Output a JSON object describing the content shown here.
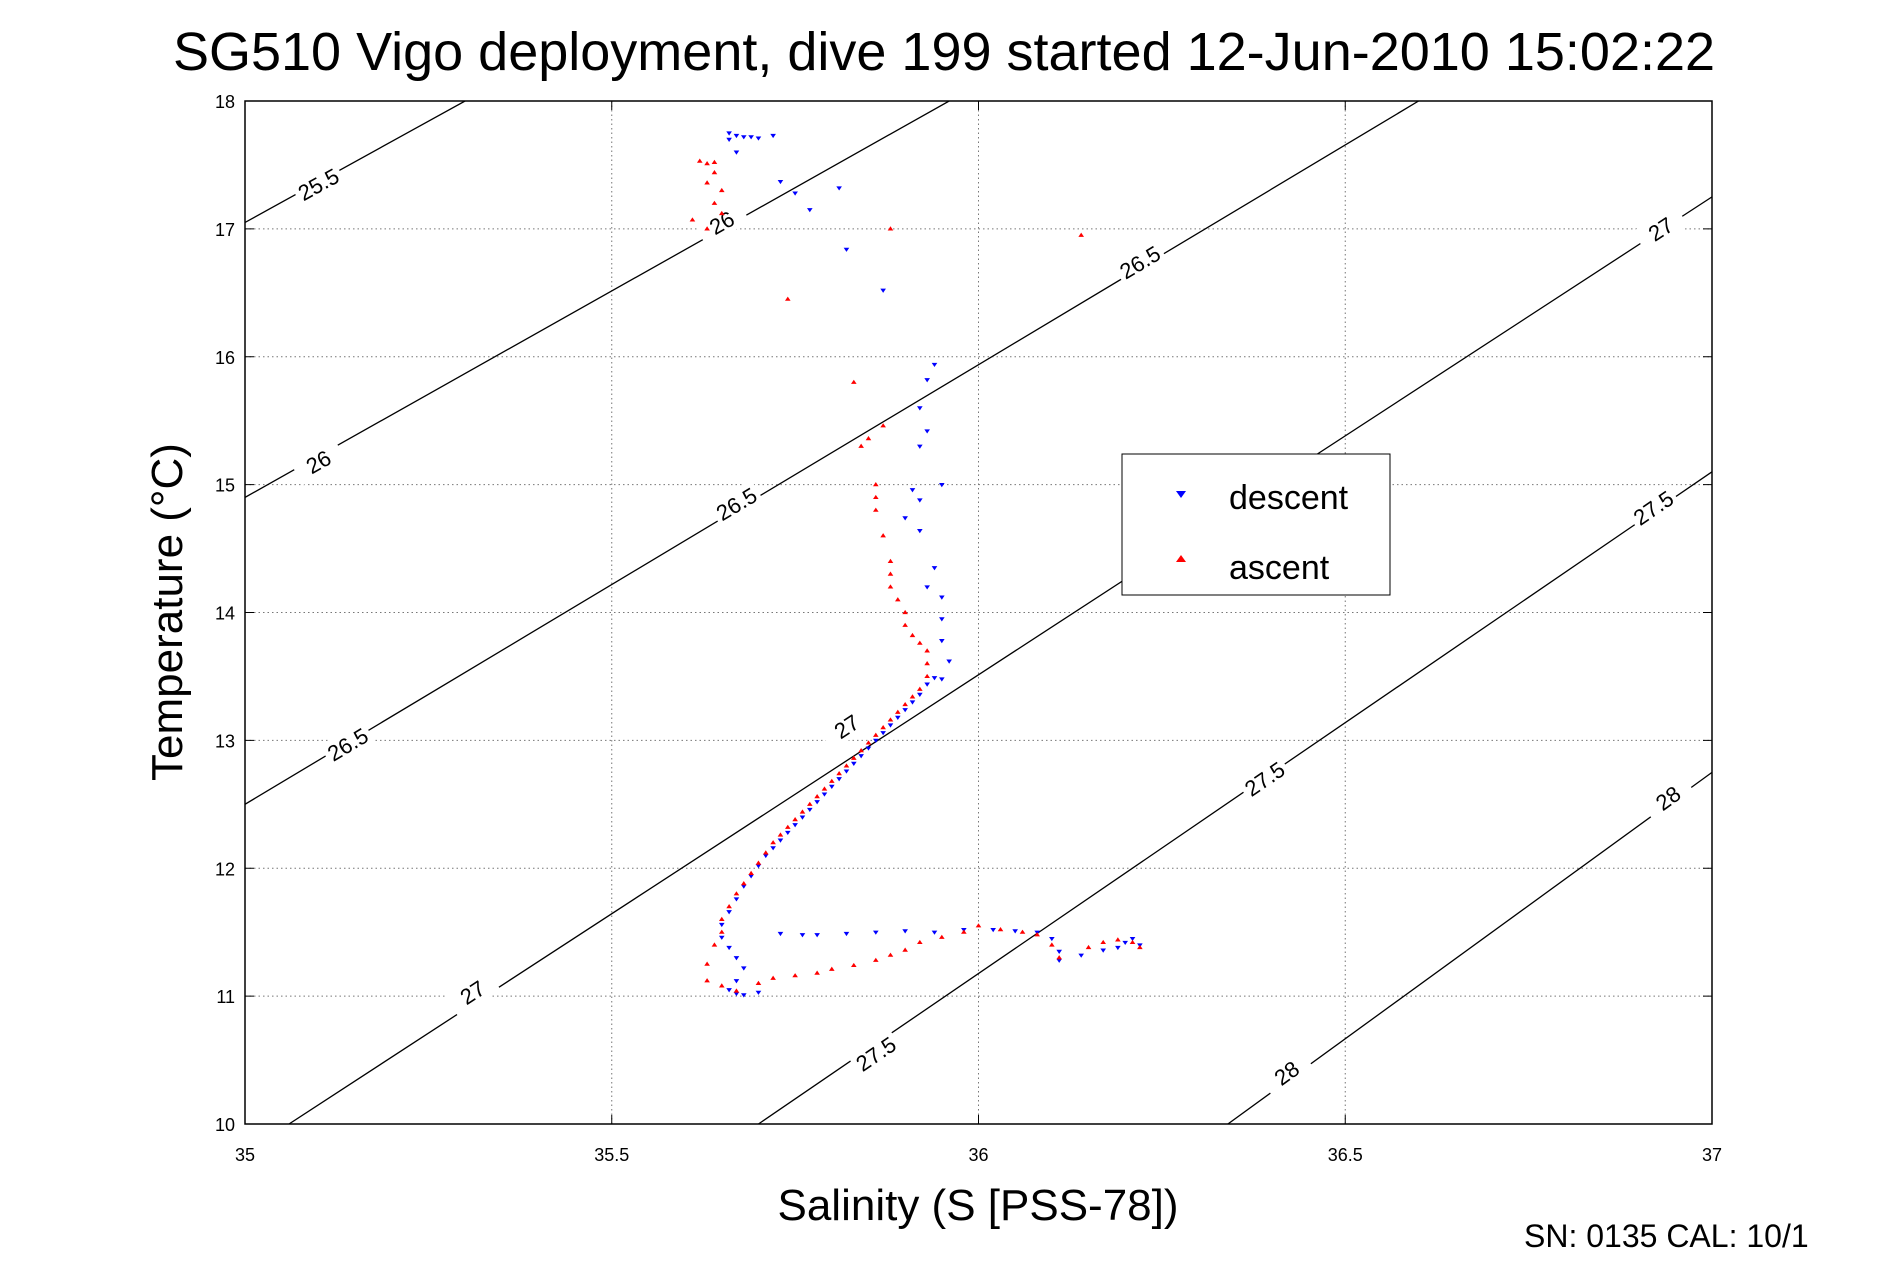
{
  "chart_data": {
    "type": "scatter",
    "title": "SG510 Vigo deployment, dive 199 started 12-Jun-2010 15:02:22",
    "xlabel": "Salinity (S [PSS-78])",
    "ylabel": "Temperature (°C)",
    "xlim": [
      35,
      37
    ],
    "ylim": [
      10,
      18
    ],
    "xticks": [
      35,
      35.5,
      36,
      36.5,
      37
    ],
    "xtick_labels": [
      "35",
      "35.5",
      "36",
      "36.5",
      "37"
    ],
    "yticks": [
      10,
      11,
      12,
      13,
      14,
      15,
      16,
      17,
      18
    ],
    "ytick_labels": [
      "10",
      "11",
      "12",
      "13",
      "14",
      "15",
      "16",
      "17",
      "18"
    ],
    "grid": true,
    "legend_position": "center-right",
    "footer": "SN: 0135  CAL: 10/1",
    "density_contours": [
      {
        "level": 25.5,
        "label": "25.5",
        "points": [
          [
            35.0,
            17.05
          ],
          [
            35.3,
            18.0
          ]
        ],
        "label_at": [
          [
            35.1,
            17.35
          ]
        ]
      },
      {
        "level": 26,
        "label": "26",
        "points": [
          [
            35.0,
            14.9
          ],
          [
            35.96,
            18.0
          ]
        ],
        "label_at": [
          [
            35.1,
            15.18
          ],
          [
            35.65,
            17.05
          ]
        ]
      },
      {
        "level": 26.5,
        "label": "26.5",
        "points": [
          [
            35.0,
            12.5
          ],
          [
            36.6,
            18.0
          ]
        ],
        "label_at": [
          [
            35.14,
            12.97
          ],
          [
            35.67,
            14.85
          ],
          [
            36.22,
            16.74
          ]
        ]
      },
      {
        "level": 27,
        "label": "27",
        "points": [
          [
            35.06,
            10.0
          ],
          [
            37.0,
            17.25
          ]
        ],
        "label_at": [
          [
            35.31,
            11.03
          ],
          [
            35.82,
            13.11
          ],
          [
            36.93,
            17.0
          ]
        ]
      },
      {
        "level": 27.5,
        "label": "27.5",
        "points": [
          [
            35.7,
            10.0
          ],
          [
            37.0,
            15.1
          ]
        ],
        "label_at": [
          [
            35.86,
            10.55
          ],
          [
            36.39,
            12.7
          ],
          [
            36.92,
            14.82
          ]
        ]
      },
      {
        "level": 28,
        "label": "28",
        "points": [
          [
            36.34,
            10.0
          ],
          [
            37.0,
            12.75
          ]
        ],
        "label_at": [
          [
            36.42,
            10.4
          ],
          [
            36.94,
            12.55
          ]
        ]
      }
    ],
    "series": [
      {
        "name": "descent",
        "color": "#0000ff",
        "marker": "triangle-down",
        "points": [
          [
            35.66,
            17.75
          ],
          [
            35.67,
            17.73
          ],
          [
            35.68,
            17.72
          ],
          [
            35.69,
            17.72
          ],
          [
            35.7,
            17.71
          ],
          [
            35.72,
            17.73
          ],
          [
            35.67,
            17.6
          ],
          [
            35.66,
            17.7
          ],
          [
            35.73,
            17.37
          ],
          [
            35.75,
            17.28
          ],
          [
            35.77,
            17.15
          ],
          [
            35.81,
            17.32
          ],
          [
            35.82,
            16.84
          ],
          [
            35.87,
            16.52
          ],
          [
            35.94,
            15.94
          ],
          [
            35.93,
            15.82
          ],
          [
            35.92,
            15.6
          ],
          [
            35.93,
            15.42
          ],
          [
            35.92,
            15.3
          ],
          [
            35.91,
            14.96
          ],
          [
            35.92,
            14.88
          ],
          [
            35.9,
            14.74
          ],
          [
            35.92,
            14.64
          ],
          [
            35.95,
            15.0
          ],
          [
            35.94,
            14.35
          ],
          [
            35.93,
            14.2
          ],
          [
            35.95,
            14.12
          ],
          [
            35.95,
            13.95
          ],
          [
            35.95,
            13.78
          ],
          [
            35.96,
            13.62
          ],
          [
            35.94,
            13.49
          ],
          [
            35.95,
            13.48
          ],
          [
            35.93,
            13.44
          ],
          [
            35.92,
            13.36
          ],
          [
            35.91,
            13.3
          ],
          [
            35.9,
            13.24
          ],
          [
            35.89,
            13.18
          ],
          [
            35.88,
            13.12
          ],
          [
            35.87,
            13.06
          ],
          [
            35.86,
            13.0
          ],
          [
            35.85,
            12.94
          ],
          [
            35.84,
            12.88
          ],
          [
            35.83,
            12.82
          ],
          [
            35.82,
            12.76
          ],
          [
            35.81,
            12.7
          ],
          [
            35.8,
            12.64
          ],
          [
            35.79,
            12.58
          ],
          [
            35.78,
            12.52
          ],
          [
            35.77,
            12.46
          ],
          [
            35.76,
            12.4
          ],
          [
            35.75,
            12.34
          ],
          [
            35.74,
            12.28
          ],
          [
            35.73,
            12.22
          ],
          [
            35.72,
            12.16
          ],
          [
            35.71,
            12.1
          ],
          [
            35.7,
            12.02
          ],
          [
            35.69,
            11.94
          ],
          [
            35.68,
            11.86
          ],
          [
            35.67,
            11.76
          ],
          [
            35.66,
            11.66
          ],
          [
            35.65,
            11.56
          ],
          [
            35.65,
            11.46
          ],
          [
            35.66,
            11.38
          ],
          [
            35.67,
            11.3
          ],
          [
            35.68,
            11.22
          ],
          [
            35.67,
            11.12
          ],
          [
            35.66,
            11.05
          ],
          [
            35.67,
            11.02
          ],
          [
            35.68,
            11.01
          ],
          [
            35.7,
            11.03
          ],
          [
            35.73,
            11.49
          ],
          [
            35.76,
            11.48
          ],
          [
            35.78,
            11.48
          ],
          [
            35.82,
            11.49
          ],
          [
            35.86,
            11.5
          ],
          [
            35.9,
            11.51
          ],
          [
            35.94,
            11.5
          ],
          [
            35.98,
            11.52
          ],
          [
            36.02,
            11.52
          ],
          [
            36.05,
            11.51
          ],
          [
            36.08,
            11.5
          ],
          [
            36.1,
            11.45
          ],
          [
            36.11,
            11.35
          ],
          [
            36.11,
            11.28
          ],
          [
            36.14,
            11.32
          ],
          [
            36.17,
            11.36
          ],
          [
            36.19,
            11.38
          ],
          [
            36.2,
            11.42
          ],
          [
            36.21,
            11.45
          ],
          [
            36.22,
            11.4
          ]
        ]
      },
      {
        "name": "ascent",
        "color": "#ff0000",
        "marker": "triangle-up",
        "points": [
          [
            35.62,
            17.53
          ],
          [
            35.63,
            17.51
          ],
          [
            35.64,
            17.52
          ],
          [
            35.64,
            17.44
          ],
          [
            35.63,
            17.36
          ],
          [
            35.65,
            17.3
          ],
          [
            35.64,
            17.2
          ],
          [
            35.65,
            17.12
          ],
          [
            35.61,
            17.07
          ],
          [
            35.63,
            17.0
          ],
          [
            35.74,
            16.45
          ],
          [
            35.88,
            17.0
          ],
          [
            36.14,
            16.95
          ],
          [
            35.83,
            15.8
          ],
          [
            35.85,
            15.36
          ],
          [
            35.84,
            15.3
          ],
          [
            35.87,
            15.46
          ],
          [
            35.86,
            15.0
          ],
          [
            35.86,
            14.9
          ],
          [
            35.86,
            14.8
          ],
          [
            35.87,
            14.6
          ],
          [
            35.88,
            14.4
          ],
          [
            35.88,
            14.3
          ],
          [
            35.88,
            14.2
          ],
          [
            35.89,
            14.1
          ],
          [
            35.9,
            14.0
          ],
          [
            35.9,
            13.9
          ],
          [
            35.91,
            13.82
          ],
          [
            35.92,
            13.76
          ],
          [
            35.93,
            13.7
          ],
          [
            35.93,
            13.6
          ],
          [
            35.93,
            13.5
          ],
          [
            35.92,
            13.4
          ],
          [
            35.91,
            13.34
          ],
          [
            35.9,
            13.28
          ],
          [
            35.89,
            13.22
          ],
          [
            35.88,
            13.16
          ],
          [
            35.87,
            13.1
          ],
          [
            35.86,
            13.04
          ],
          [
            35.85,
            12.98
          ],
          [
            35.84,
            12.92
          ],
          [
            35.83,
            12.86
          ],
          [
            35.82,
            12.8
          ],
          [
            35.81,
            12.74
          ],
          [
            35.8,
            12.68
          ],
          [
            35.79,
            12.62
          ],
          [
            35.78,
            12.56
          ],
          [
            35.77,
            12.5
          ],
          [
            35.76,
            12.44
          ],
          [
            35.75,
            12.38
          ],
          [
            35.74,
            12.32
          ],
          [
            35.73,
            12.26
          ],
          [
            35.72,
            12.2
          ],
          [
            35.71,
            12.12
          ],
          [
            35.7,
            12.04
          ],
          [
            35.69,
            11.96
          ],
          [
            35.68,
            11.88
          ],
          [
            35.67,
            11.8
          ],
          [
            35.66,
            11.7
          ],
          [
            35.65,
            11.6
          ],
          [
            35.65,
            11.5
          ],
          [
            35.64,
            11.4
          ],
          [
            35.63,
            11.25
          ],
          [
            35.63,
            11.12
          ],
          [
            35.65,
            11.08
          ],
          [
            35.67,
            11.04
          ],
          [
            35.7,
            11.1
          ],
          [
            35.72,
            11.14
          ],
          [
            35.75,
            11.16
          ],
          [
            35.78,
            11.18
          ],
          [
            35.8,
            11.21
          ],
          [
            35.83,
            11.24
          ],
          [
            35.86,
            11.28
          ],
          [
            35.88,
            11.32
          ],
          [
            35.9,
            11.36
          ],
          [
            35.92,
            11.42
          ],
          [
            35.95,
            11.46
          ],
          [
            35.98,
            11.5
          ],
          [
            36.0,
            11.55
          ],
          [
            36.03,
            11.52
          ],
          [
            36.06,
            11.5
          ],
          [
            36.08,
            11.48
          ],
          [
            36.1,
            11.4
          ],
          [
            36.11,
            11.3
          ],
          [
            36.15,
            11.38
          ],
          [
            36.17,
            11.42
          ],
          [
            36.19,
            11.44
          ],
          [
            36.21,
            11.42
          ],
          [
            36.22,
            11.38
          ]
        ]
      }
    ]
  }
}
